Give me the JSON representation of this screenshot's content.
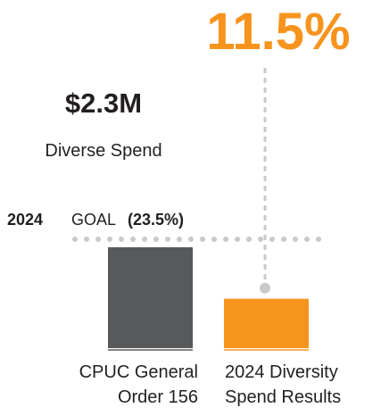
{
  "chart_data": {
    "type": "bar",
    "categories": [
      "CPUC General Order 156",
      "2024 Diversity Spend Results"
    ],
    "values": [
      23.5,
      11.5
    ],
    "value_labels": [
      "(23.5%)",
      "11.5%"
    ],
    "colors": [
      "#58595b",
      "#f7941d"
    ],
    "goal_label": {
      "year": "2024",
      "text": "GOAL"
    },
    "annotations": {
      "amount": "$2.3M",
      "caption": "Diverse Spend"
    }
  }
}
